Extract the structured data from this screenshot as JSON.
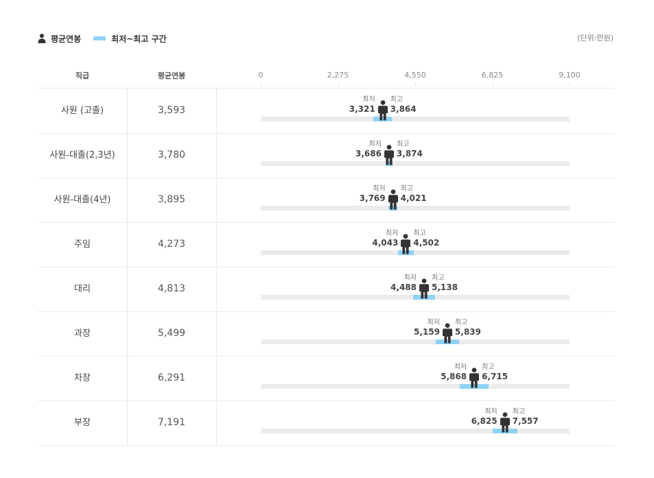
{
  "legend": {
    "avg_label": "평균연봉",
    "range_label": "최저~최고 구간",
    "unit_label": "(단위:만원)",
    "avg_icon": "person-icon",
    "range_icon": "range-swatch-icon"
  },
  "header": {
    "col_grade": "직급",
    "col_avg": "평균연봉"
  },
  "captions": {
    "min": "최저",
    "max": "최고"
  },
  "colors": {
    "range": "#8fd3f7",
    "track": "#ebebeb",
    "person": "#333333"
  },
  "chart_data": {
    "type": "range-bar",
    "xlim": [
      0,
      9100
    ],
    "ticks": [
      0,
      2275,
      4550,
      6825,
      9100
    ],
    "tick_labels": [
      "0",
      "2,275",
      "4,550",
      "6,825",
      "9,100"
    ],
    "rows": [
      {
        "grade": "사원 (고졸)",
        "avg": 3593,
        "avg_label": "3,593",
        "min": 3321,
        "min_label": "3,321",
        "max": 3864,
        "max_label": "3,864"
      },
      {
        "grade": "사원-대졸(2,3년)",
        "avg": 3780,
        "avg_label": "3,780",
        "min": 3686,
        "min_label": "3,686",
        "max": 3874,
        "max_label": "3,874"
      },
      {
        "grade": "사원-대졸(4년)",
        "avg": 3895,
        "avg_label": "3,895",
        "min": 3769,
        "min_label": "3,769",
        "max": 4021,
        "max_label": "4,021"
      },
      {
        "grade": "주임",
        "avg": 4273,
        "avg_label": "4,273",
        "min": 4043,
        "min_label": "4,043",
        "max": 4502,
        "max_label": "4,502"
      },
      {
        "grade": "대리",
        "avg": 4813,
        "avg_label": "4,813",
        "min": 4488,
        "min_label": "4,488",
        "max": 5138,
        "max_label": "5,138"
      },
      {
        "grade": "과장",
        "avg": 5499,
        "avg_label": "5,499",
        "min": 5159,
        "min_label": "5,159",
        "max": 5839,
        "max_label": "5,839"
      },
      {
        "grade": "차장",
        "avg": 6291,
        "avg_label": "6,291",
        "min": 5868,
        "min_label": "5,868",
        "max": 6715,
        "max_label": "6,715"
      },
      {
        "grade": "부장",
        "avg": 7191,
        "avg_label": "7,191",
        "min": 6825,
        "min_label": "6,825",
        "max": 7557,
        "max_label": "7,557"
      }
    ]
  }
}
